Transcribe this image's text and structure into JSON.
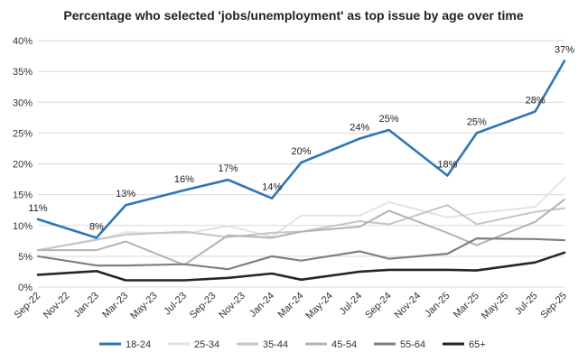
{
  "chart_data": {
    "type": "line",
    "title": "Percentage who selected 'jobs/unemployment' as top issue by age over time",
    "xlabel": "",
    "ylabel": "",
    "ylim": [
      0,
      40
    ],
    "y_ticks": [
      "0%",
      "5%",
      "10%",
      "15%",
      "20%",
      "25%",
      "30%",
      "35%",
      "40%"
    ],
    "grid": "horizontal",
    "legend_position": "bottom",
    "x": [
      "Sep-22",
      "Oct-22",
      "Nov-22",
      "Dec-22",
      "Jan-23",
      "Feb-23",
      "Mar-23",
      "Apr-23",
      "May-23",
      "Jun-23",
      "Jul-23",
      "Aug-23",
      "Sep-23",
      "Oct-23",
      "Nov-23",
      "Dec-23",
      "Jan-24",
      "Feb-24",
      "Mar-24",
      "Apr-24",
      "May-24",
      "Jun-24",
      "Jul-24",
      "Aug-24",
      "Sep-24",
      "Oct-24",
      "Nov-24",
      "Dec-24",
      "Jan-25",
      "Feb-25",
      "Mar-25",
      "Apr-25",
      "May-25",
      "Jun-25",
      "Jul-25",
      "Aug-25",
      "Sep-25"
    ],
    "x_tick_labels": [
      "Sep-22",
      "Nov-22",
      "Jan-23",
      "Mar-23",
      "May-23",
      "Jul-23",
      "Sep-23",
      "Nov-23",
      "Jan-24",
      "Mar-24",
      "May-24",
      "Jul-24",
      "Sep-24",
      "Nov-24",
      "Jan-25",
      "Mar-25",
      "May-25",
      "Jul-25",
      "Sep-25"
    ],
    "series": [
      {
        "name": "18-24",
        "color": "#2e75b6",
        "width": 2.6,
        "points": [
          [
            "Sep-22",
            11
          ],
          [
            "Jan-23",
            8
          ],
          [
            "Mar-23",
            13.3
          ],
          [
            "Jul-23",
            15.7
          ],
          [
            "Oct-23",
            17.4
          ],
          [
            "Jan-24",
            14.4
          ],
          [
            "Mar-24",
            20.2
          ],
          [
            "Jul-24",
            24.1
          ],
          [
            "Sep-24",
            25.5
          ],
          [
            "Jan-25",
            18.1
          ],
          [
            "Mar-25",
            25
          ],
          [
            "Jul-25",
            28.5
          ],
          [
            "Sep-25",
            36.7
          ]
        ],
        "data_labels": [
          [
            "Sep-22",
            "11%"
          ],
          [
            "Jan-23",
            "8%"
          ],
          [
            "Mar-23",
            "13%"
          ],
          [
            "Jul-23",
            "16%"
          ],
          [
            "Oct-23",
            "17%"
          ],
          [
            "Jan-24",
            "14%"
          ],
          [
            "Mar-24",
            "20%"
          ],
          [
            "Jul-24",
            "24%"
          ],
          [
            "Sep-24",
            "25%"
          ],
          [
            "Jan-25",
            "18%"
          ],
          [
            "Mar-25",
            "25%"
          ],
          [
            "Jul-25",
            "28%"
          ],
          [
            "Sep-25",
            "37%"
          ]
        ]
      },
      {
        "name": "25-34",
        "color": "#e3e3e3",
        "width": 2,
        "points": [
          [
            "Sep-22",
            6
          ],
          [
            "Jan-23",
            7.6
          ],
          [
            "Mar-23",
            8.9
          ],
          [
            "Jul-23",
            8.7
          ],
          [
            "Oct-23",
            9.9
          ],
          [
            "Jan-24",
            8.2
          ],
          [
            "Mar-24",
            11.6
          ],
          [
            "Jul-24",
            11.6
          ],
          [
            "Sep-24",
            13.8
          ],
          [
            "Jan-25",
            11.3
          ],
          [
            "Mar-25",
            12
          ],
          [
            "Jul-25",
            13
          ],
          [
            "Sep-25",
            17.7
          ]
        ]
      },
      {
        "name": "35-44",
        "color": "#c5c5c5",
        "width": 2,
        "points": [
          [
            "Sep-22",
            6
          ],
          [
            "Jan-23",
            7.7
          ],
          [
            "Mar-23",
            8.5
          ],
          [
            "Jul-23",
            9
          ],
          [
            "Oct-23",
            8.1
          ],
          [
            "Jan-24",
            8.8
          ],
          [
            "Mar-24",
            9
          ],
          [
            "Jul-24",
            10.7
          ],
          [
            "Sep-24",
            10.2
          ],
          [
            "Jan-25",
            13.3
          ],
          [
            "Mar-25",
            10.2
          ],
          [
            "Jul-25",
            12.2
          ],
          [
            "Sep-25",
            12.8
          ]
        ]
      },
      {
        "name": "45-54",
        "color": "#b3b3b3",
        "width": 2,
        "points": [
          [
            "Sep-22",
            6
          ],
          [
            "Jan-23",
            6
          ],
          [
            "Mar-23",
            7.4
          ],
          [
            "Jul-23",
            3.6
          ],
          [
            "Oct-23",
            8.4
          ],
          [
            "Jan-24",
            8
          ],
          [
            "Mar-24",
            9
          ],
          [
            "Jul-24",
            9.8
          ],
          [
            "Sep-24",
            12.4
          ],
          [
            "Jan-25",
            8.8
          ],
          [
            "Mar-25",
            6.8
          ],
          [
            "Jul-25",
            10.6
          ],
          [
            "Sep-25",
            14.2
          ]
        ]
      },
      {
        "name": "55-64",
        "color": "#7f7f7f",
        "width": 2.2,
        "points": [
          [
            "Sep-22",
            5
          ],
          [
            "Jan-23",
            3.5
          ],
          [
            "Mar-23",
            3.5
          ],
          [
            "Jul-23",
            3.7
          ],
          [
            "Oct-23",
            2.9
          ],
          [
            "Jan-24",
            5
          ],
          [
            "Mar-24",
            4.3
          ],
          [
            "Jul-24",
            5.8
          ],
          [
            "Sep-24",
            4.6
          ],
          [
            "Jan-25",
            5.4
          ],
          [
            "Mar-25",
            7.9
          ],
          [
            "Jul-25",
            7.8
          ],
          [
            "Sep-25",
            7.6
          ]
        ]
      },
      {
        "name": "65+",
        "color": "#262626",
        "width": 2.6,
        "points": [
          [
            "Sep-22",
            2
          ],
          [
            "Jan-23",
            2.6
          ],
          [
            "Mar-23",
            1.1
          ],
          [
            "Jul-23",
            1.1
          ],
          [
            "Oct-23",
            1.5
          ],
          [
            "Jan-24",
            2.2
          ],
          [
            "Mar-24",
            1.2
          ],
          [
            "Jul-24",
            2.5
          ],
          [
            "Sep-24",
            2.8
          ],
          [
            "Jan-25",
            2.8
          ],
          [
            "Mar-25",
            2.7
          ],
          [
            "Jul-25",
            4
          ],
          [
            "Sep-25",
            5.6
          ]
        ]
      }
    ]
  }
}
